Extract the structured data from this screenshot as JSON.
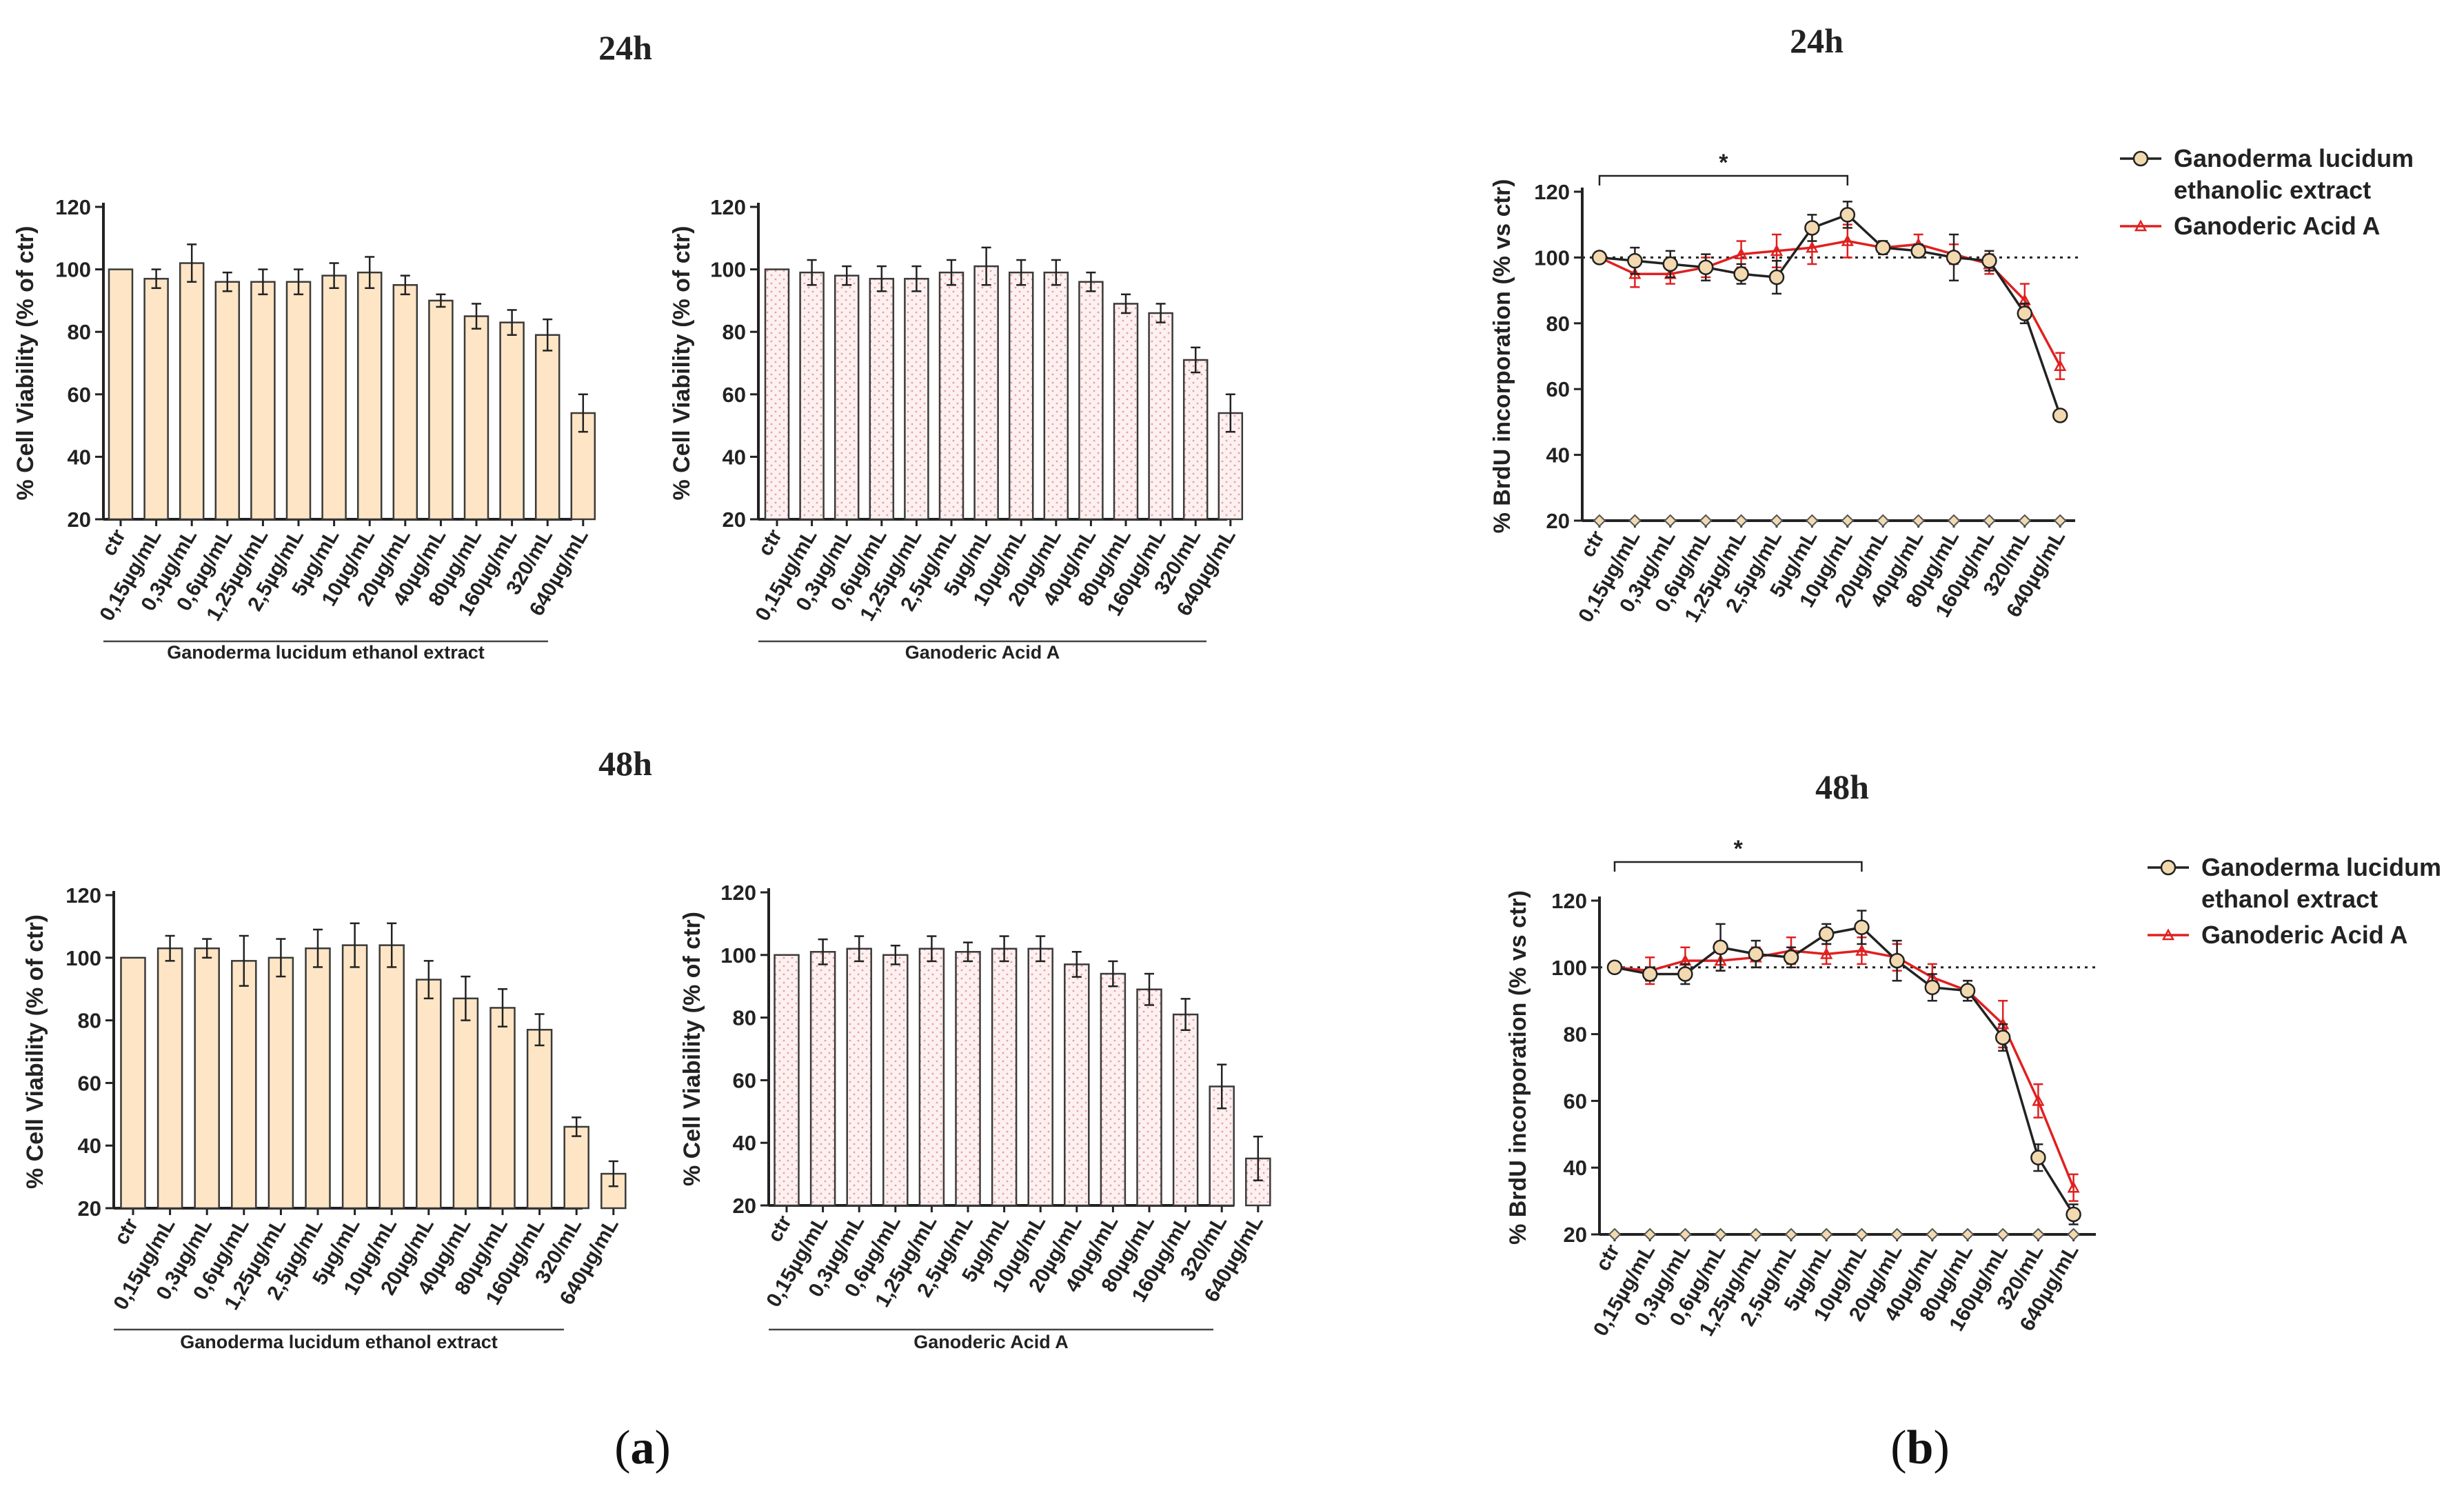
{
  "panels": {
    "a": "a",
    "b": "b"
  },
  "headings": {
    "a_24": "24h",
    "a_48": "48h",
    "b_24": "24h",
    "b_48": "48h"
  },
  "colors": {
    "extract_fill": "#fde5c5",
    "acid_fill": "#fdf0f0",
    "acid_dot": "#e8a0a0",
    "acid_line": "#e02020",
    "extract_line": "#222222",
    "marker_fill": "#f2d9b0"
  },
  "chart_data": [
    {
      "id": "a24-extract",
      "type": "bar",
      "title": "24h",
      "ylabel": "% Cell Viability (% of ctr)",
      "xlabel": "Ganoderma lucidum ethanol extract",
      "categories": [
        "ctr",
        "0,15µg/mL",
        "0,3µg/mL",
        "0,6µg/mL",
        "1,25µg/mL",
        "2,5µg/mL",
        "5µg/mL",
        "10µg/mL",
        "20µg/mL",
        "40µg/mL",
        "80µg/mL",
        "160µg/mL",
        "320/mL",
        "640µg/mL"
      ],
      "values": [
        100,
        97,
        102,
        96,
        96,
        96,
        98,
        99,
        95,
        90,
        85,
        83,
        79,
        54
      ],
      "errors": [
        0,
        3,
        6,
        3,
        4,
        4,
        4,
        5,
        3,
        2,
        4,
        4,
        5,
        6
      ],
      "ylim": [
        20,
        120
      ],
      "yticks": [
        20,
        40,
        60,
        80,
        100,
        120
      ],
      "style": "extract"
    },
    {
      "id": "a24-acid",
      "type": "bar",
      "title": "24h",
      "ylabel": "% Cell Viability (% of ctr)",
      "xlabel": "Ganoderic Acid A",
      "categories": [
        "ctr",
        "0,15µg/mL",
        "0,3µg/mL",
        "0,6µg/mL",
        "1,25µg/mL",
        "2,5µg/mL",
        "5µg/mL",
        "10µg/mL",
        "20µg/mL",
        "40µg/mL",
        "80µg/mL",
        "160µg/mL",
        "320/mL",
        "640µg/mL"
      ],
      "values": [
        100,
        99,
        98,
        97,
        97,
        99,
        101,
        99,
        99,
        96,
        89,
        86,
        71,
        54
      ],
      "errors": [
        0,
        4,
        3,
        4,
        4,
        4,
        6,
        4,
        4,
        3,
        3,
        3,
        4,
        6
      ],
      "ylim": [
        20,
        120
      ],
      "yticks": [
        20,
        40,
        60,
        80,
        100,
        120
      ],
      "style": "acid"
    },
    {
      "id": "a48-extract",
      "type": "bar",
      "title": "48h",
      "ylabel": "% Cell Viability (% of ctr)",
      "xlabel": "Ganoderma lucidum ethanol extract",
      "categories": [
        "ctr",
        "0,15µg/mL",
        "0,3µg/mL",
        "0,6µg/mL",
        "1,25µg/mL",
        "2,5µg/mL",
        "5µg/mL",
        "10µg/mL",
        "20µg/mL",
        "40µg/mL",
        "80µg/mL",
        "160µg/mL",
        "320/mL",
        "640µg/mL"
      ],
      "values": [
        100,
        103,
        103,
        99,
        100,
        103,
        104,
        104,
        93,
        87,
        84,
        77,
        46,
        31
      ],
      "errors": [
        0,
        4,
        3,
        8,
        6,
        6,
        7,
        7,
        6,
        7,
        6,
        5,
        3,
        4
      ],
      "ylim": [
        20,
        120
      ],
      "yticks": [
        20,
        40,
        60,
        80,
        100,
        120
      ],
      "style": "extract"
    },
    {
      "id": "a48-acid",
      "type": "bar",
      "title": "48h",
      "ylabel": "% Cell Viability (% of ctr)",
      "xlabel": "Ganoderic Acid A",
      "categories": [
        "ctr",
        "0,15µg/mL",
        "0,3µg/mL",
        "0,6µg/mL",
        "1,25µg/mL",
        "2,5µg/mL",
        "5µg/mL",
        "10µg/mL",
        "20µg/mL",
        "40µg/mL",
        "80µg/mL",
        "160µg/mL",
        "320/mL",
        "640µg/mL"
      ],
      "values": [
        100,
        101,
        102,
        100,
        102,
        101,
        102,
        102,
        97,
        94,
        89,
        81,
        58,
        35
      ],
      "errors": [
        0,
        4,
        4,
        3,
        4,
        3,
        4,
        4,
        4,
        4,
        5,
        5,
        7,
        7
      ],
      "ylim": [
        20,
        120
      ],
      "yticks": [
        20,
        40,
        60,
        80,
        100,
        120
      ],
      "style": "acid"
    },
    {
      "id": "b24",
      "type": "line",
      "title": "24h",
      "ylabel": "% BrdU incorporation (% vs ctr)",
      "categories": [
        "ctr",
        "0,15µg/mL",
        "0,3µg/mL",
        "0,6µg/mL",
        "1,25µg/mL",
        "2,5µg/mL",
        "5µg/mL",
        "10µg/mL",
        "20µg/mL",
        "40µg/mL",
        "80µg/mL",
        "160µg/mL",
        "320/mL",
        "640µg/mL"
      ],
      "ylim": [
        20,
        120
      ],
      "yticks": [
        20,
        40,
        60,
        80,
        100,
        120
      ],
      "reference_y": 100,
      "significance": {
        "from": 0,
        "to": 7,
        "label": "*"
      },
      "series": [
        {
          "name": "Ganoderma lucidum ethanolic extract",
          "legend_lines": [
            "Ganoderma lucidum",
            "ethanolic extract"
          ],
          "values": [
            100,
            99,
            98,
            97,
            95,
            94,
            109,
            113,
            103,
            102,
            100,
            99,
            83,
            52
          ],
          "errors": [
            0,
            4,
            4,
            4,
            3,
            5,
            4,
            4,
            2,
            2,
            7,
            3,
            3,
            1
          ],
          "style": "extract"
        },
        {
          "name": "Ganoderic Acid A",
          "legend_lines": [
            "Ganoderic Acid A"
          ],
          "values": [
            100,
            95,
            95,
            97,
            101,
            102,
            103,
            105,
            103,
            104,
            101,
            98,
            87,
            67
          ],
          "errors": [
            0,
            4,
            3,
            3,
            4,
            5,
            5,
            5,
            2,
            3,
            3,
            3,
            5,
            4
          ],
          "style": "acid"
        }
      ],
      "baseline_series": {
        "values": [
          20,
          20,
          20,
          20,
          20,
          20,
          20,
          20,
          20,
          20,
          20,
          20,
          20,
          20
        ]
      }
    },
    {
      "id": "b48",
      "type": "line",
      "title": "48h",
      "ylabel": "% BrdU incorporation (% vs ctr)",
      "categories": [
        "ctr",
        "0,15µg/mL",
        "0,3µg/mL",
        "0,6µg/mL",
        "1,25µg/mL",
        "2,5µg/mL",
        "5µg/mL",
        "10µg/mL",
        "20µg/mL",
        "40µg/mL",
        "80µg/mL",
        "160µg/mL",
        "320/mL",
        "640µg/mL"
      ],
      "ylim": [
        20,
        120
      ],
      "yticks": [
        20,
        40,
        60,
        80,
        100,
        120
      ],
      "reference_y": 100,
      "significance": {
        "from": 0,
        "to": 7,
        "label": "*"
      },
      "series": [
        {
          "name": "Ganoderma lucidum ethanol extract",
          "legend_lines": [
            "Ganoderma lucidum",
            "ethanol extract"
          ],
          "values": [
            100,
            98,
            98,
            106,
            104,
            103,
            110,
            112,
            102,
            94,
            93,
            79,
            43,
            26
          ],
          "errors": [
            0,
            2,
            3,
            7,
            4,
            3,
            3,
            5,
            6,
            4,
            3,
            4,
            4,
            3
          ],
          "style": "extract"
        },
        {
          "name": "Ganoderic Acid A",
          "legend_lines": [
            "Ganoderic Acid A"
          ],
          "values": [
            100,
            99,
            102,
            102,
            103,
            105,
            104,
            105,
            103,
            97,
            93,
            83,
            60,
            34
          ],
          "errors": [
            0,
            4,
            4,
            3,
            3,
            4,
            3,
            4,
            4,
            4,
            3,
            7,
            5,
            4
          ],
          "style": "acid"
        }
      ],
      "baseline_series": {
        "values": [
          20,
          20,
          20,
          20,
          20,
          20,
          20,
          20,
          20,
          20,
          20,
          20,
          20,
          20
        ]
      }
    }
  ]
}
